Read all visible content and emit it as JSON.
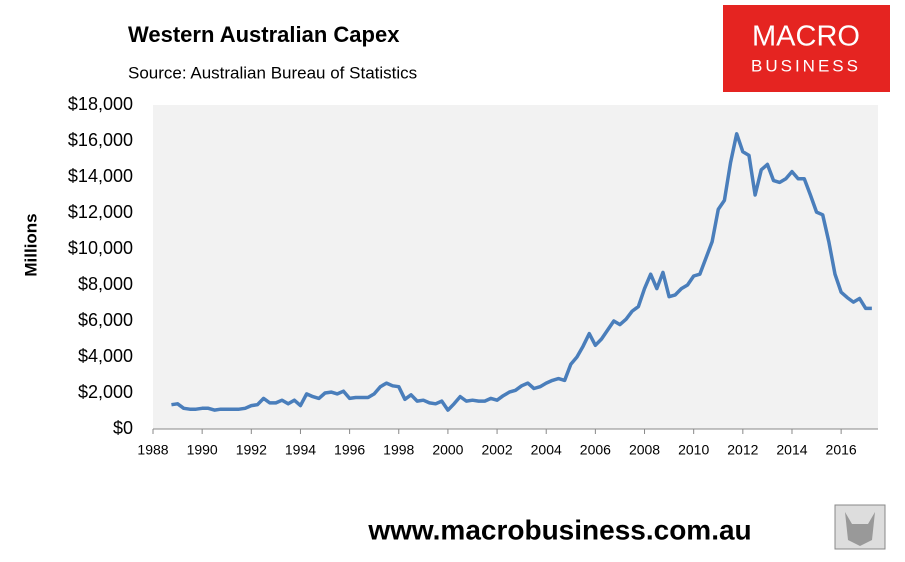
{
  "chart_data": {
    "type": "line",
    "title": "Western Australian Capex",
    "subtitle": "Source: Australian Bureau of Statistics",
    "y_label": "Millions",
    "logo": [
      "MACRO",
      "BUSINESS"
    ],
    "footer": "www.macrobusiness.com.au",
    "x": [
      1988.75,
      1989,
      1989.25,
      1989.5,
      1989.75,
      1990,
      1990.25,
      1990.5,
      1990.75,
      1991,
      1991.25,
      1991.5,
      1991.75,
      1992,
      1992.25,
      1992.5,
      1992.75,
      1993,
      1993.25,
      1993.5,
      1993.75,
      1994,
      1994.25,
      1994.5,
      1994.75,
      1995,
      1995.25,
      1995.5,
      1995.75,
      1996,
      1996.25,
      1996.5,
      1996.75,
      1997,
      1997.25,
      1997.5,
      1997.75,
      1998,
      1998.25,
      1998.5,
      1998.75,
      1999,
      1999.25,
      1999.5,
      1999.75,
      2000,
      2000.25,
      2000.5,
      2000.75,
      2001,
      2001.25,
      2001.5,
      2001.75,
      2002,
      2002.25,
      2002.5,
      2002.75,
      2003,
      2003.25,
      2003.5,
      2003.75,
      2004,
      2004.25,
      2004.5,
      2004.75,
      2005,
      2005.25,
      2005.5,
      2005.75,
      2006,
      2006.25,
      2006.5,
      2006.75,
      2007,
      2007.25,
      2007.5,
      2007.75,
      2008,
      2008.25,
      2008.5,
      2008.75,
      2009,
      2009.25,
      2009.5,
      2009.75,
      2010,
      2010.25,
      2010.5,
      2010.75,
      2011,
      2011.25,
      2011.5,
      2011.75,
      2012,
      2012.25,
      2012.5,
      2012.75,
      2013,
      2013.25,
      2013.5,
      2013.75,
      2014,
      2014.25,
      2014.5,
      2014.75,
      2015,
      2015.25,
      2015.5,
      2015.75,
      2016,
      2016.25,
      2016.5,
      2016.75,
      2017,
      2017.25
    ],
    "series": [
      {
        "color": "#4a7ebb",
        "values": [
          1350,
          1400,
          1150,
          1100,
          1100,
          1150,
          1150,
          1050,
          1100,
          1100,
          1100,
          1100,
          1150,
          1300,
          1350,
          1700,
          1450,
          1450,
          1600,
          1400,
          1600,
          1300,
          1950,
          1800,
          1700,
          2000,
          2050,
          1950,
          2100,
          1700,
          1750,
          1750,
          1750,
          1950,
          2350,
          2550,
          2400,
          2350,
          1650,
          1900,
          1550,
          1600,
          1450,
          1400,
          1550,
          1050,
          1400,
          1800,
          1550,
          1600,
          1550,
          1550,
          1700,
          1600,
          1850,
          2050,
          2150,
          2400,
          2550,
          2250,
          2350,
          2550,
          2700,
          2800,
          2700,
          3600,
          4000,
          4600,
          5300,
          4650,
          5000,
          5500,
          6000,
          5800,
          6100,
          6550,
          6800,
          7800,
          8600,
          7800,
          8700,
          7350,
          7450,
          7800,
          8000,
          8500,
          8600,
          9500,
          10400,
          12200,
          12700,
          14800,
          16400,
          15400,
          15200,
          13000,
          14400,
          14700,
          13800,
          13700,
          13900,
          14300,
          13900,
          13900,
          13000,
          12050,
          11900,
          10400,
          8600,
          7600,
          7300,
          7050,
          7250,
          6700,
          6700
        ]
      }
    ],
    "xlim": [
      1988,
      2017.5
    ],
    "xticks": [
      1988,
      1990,
      1992,
      1994,
      1996,
      1998,
      2000,
      2002,
      2004,
      2006,
      2008,
      2010,
      2012,
      2014,
      2016
    ],
    "ylim": [
      0,
      18000
    ],
    "yticks": [
      {
        "value": 0,
        "label": "$0"
      },
      {
        "value": 2000,
        "label": "$2,000"
      },
      {
        "value": 4000,
        "label": "$4,000"
      },
      {
        "value": 6000,
        "label": "$6,000"
      },
      {
        "value": 8000,
        "label": "$8,000"
      },
      {
        "value": 10000,
        "label": "$10,000"
      },
      {
        "value": 12000,
        "label": "$12,000"
      },
      {
        "value": 14000,
        "label": "$14,000"
      },
      {
        "value": 16000,
        "label": "$16,000"
      },
      {
        "value": 18000,
        "label": "$18,000"
      }
    ],
    "grid": false
  }
}
